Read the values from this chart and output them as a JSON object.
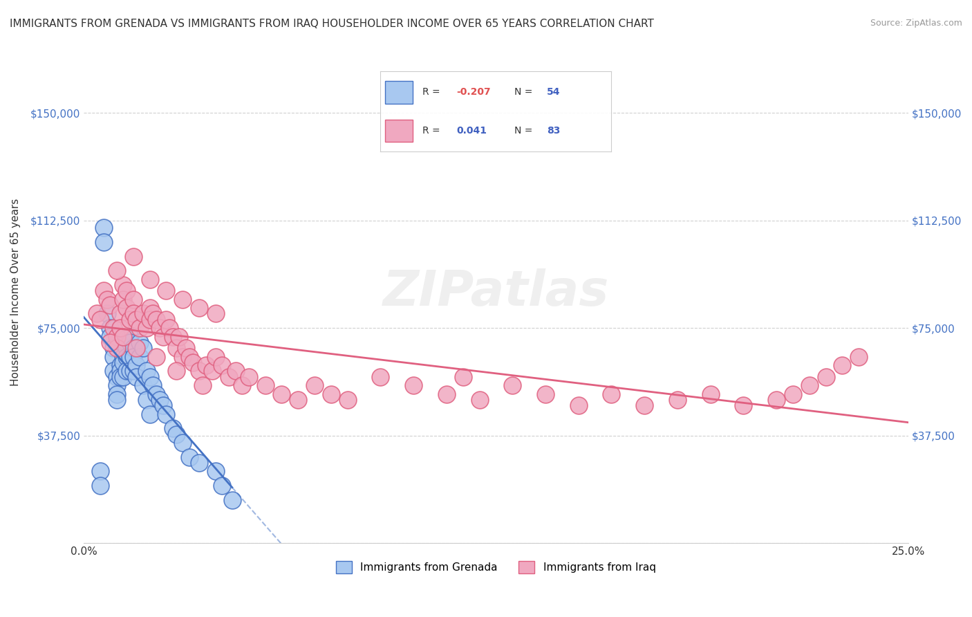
{
  "title": "IMMIGRANTS FROM GRENADA VS IMMIGRANTS FROM IRAQ HOUSEHOLDER INCOME OVER 65 YEARS CORRELATION CHART",
  "source": "Source: ZipAtlas.com",
  "xlabel": "",
  "ylabel": "Householder Income Over 65 years",
  "xlim": [
    0.0,
    0.25
  ],
  "ylim": [
    0,
    175000
  ],
  "xticks": [
    0.0,
    0.05,
    0.1,
    0.15,
    0.2,
    0.25
  ],
  "xticklabels": [
    "0.0%",
    "",
    "",
    "",
    "",
    "25.0%"
  ],
  "yticks": [
    0,
    37500,
    75000,
    112500,
    150000
  ],
  "yticklabels": [
    "",
    "$37,500",
    "$75,000",
    "$112,500",
    "$150,000"
  ],
  "legend_labels": [
    "Immigrants from Grenada",
    "Immigrants from Iraq"
  ],
  "legend_r_values": [
    "-0.207",
    "0.041"
  ],
  "legend_n_values": [
    "54",
    "83"
  ],
  "color_grenada": "#a8c8f0",
  "color_iraq": "#f0a8c0",
  "line_color_grenada": "#4472c4",
  "line_color_iraq": "#e06080",
  "watermark": "ZIPatlas",
  "background_color": "#ffffff",
  "grid_color": "#d0d0d0",
  "scatter_grenada_x": [
    0.005,
    0.005,
    0.006,
    0.006,
    0.007,
    0.008,
    0.008,
    0.009,
    0.009,
    0.009,
    0.01,
    0.01,
    0.01,
    0.01,
    0.011,
    0.011,
    0.011,
    0.012,
    0.012,
    0.012,
    0.013,
    0.013,
    0.013,
    0.013,
    0.014,
    0.014,
    0.014,
    0.014,
    0.015,
    0.015,
    0.015,
    0.016,
    0.016,
    0.017,
    0.017,
    0.018,
    0.018,
    0.019,
    0.019,
    0.02,
    0.02,
    0.021,
    0.022,
    0.023,
    0.024,
    0.025,
    0.027,
    0.028,
    0.03,
    0.032,
    0.035,
    0.04,
    0.042,
    0.045
  ],
  "scatter_grenada_y": [
    25000,
    20000,
    110000,
    105000,
    80000,
    75000,
    72000,
    68000,
    65000,
    60000,
    58000,
    55000,
    52000,
    50000,
    62000,
    60000,
    58000,
    65000,
    63000,
    58000,
    70000,
    68000,
    65000,
    60000,
    72000,
    70000,
    65000,
    60000,
    68000,
    65000,
    60000,
    62000,
    58000,
    70000,
    65000,
    68000,
    55000,
    60000,
    50000,
    58000,
    45000,
    55000,
    52000,
    50000,
    48000,
    45000,
    40000,
    38000,
    35000,
    30000,
    28000,
    25000,
    20000,
    15000
  ],
  "scatter_iraq_x": [
    0.004,
    0.005,
    0.006,
    0.007,
    0.008,
    0.009,
    0.01,
    0.01,
    0.011,
    0.011,
    0.012,
    0.012,
    0.013,
    0.013,
    0.014,
    0.015,
    0.015,
    0.016,
    0.017,
    0.018,
    0.019,
    0.02,
    0.02,
    0.021,
    0.022,
    0.023,
    0.024,
    0.025,
    0.026,
    0.027,
    0.028,
    0.029,
    0.03,
    0.031,
    0.032,
    0.033,
    0.035,
    0.037,
    0.039,
    0.04,
    0.042,
    0.044,
    0.046,
    0.048,
    0.05,
    0.055,
    0.06,
    0.065,
    0.07,
    0.075,
    0.08,
    0.09,
    0.1,
    0.11,
    0.115,
    0.12,
    0.13,
    0.14,
    0.15,
    0.16,
    0.17,
    0.18,
    0.19,
    0.2,
    0.21,
    0.215,
    0.22,
    0.225,
    0.23,
    0.235,
    0.01,
    0.015,
    0.02,
    0.025,
    0.03,
    0.035,
    0.04,
    0.008,
    0.012,
    0.016,
    0.022,
    0.028,
    0.036
  ],
  "scatter_iraq_y": [
    80000,
    78000,
    88000,
    85000,
    83000,
    75000,
    72000,
    68000,
    80000,
    75000,
    90000,
    85000,
    88000,
    82000,
    78000,
    85000,
    80000,
    78000,
    75000,
    80000,
    75000,
    82000,
    78000,
    80000,
    78000,
    75000,
    72000,
    78000,
    75000,
    72000,
    68000,
    72000,
    65000,
    68000,
    65000,
    63000,
    60000,
    62000,
    60000,
    65000,
    62000,
    58000,
    60000,
    55000,
    58000,
    55000,
    52000,
    50000,
    55000,
    52000,
    50000,
    58000,
    55000,
    52000,
    58000,
    50000,
    55000,
    52000,
    48000,
    52000,
    48000,
    50000,
    52000,
    48000,
    50000,
    52000,
    55000,
    58000,
    62000,
    65000,
    95000,
    100000,
    92000,
    88000,
    85000,
    82000,
    80000,
    70000,
    72000,
    68000,
    65000,
    60000,
    55000
  ]
}
